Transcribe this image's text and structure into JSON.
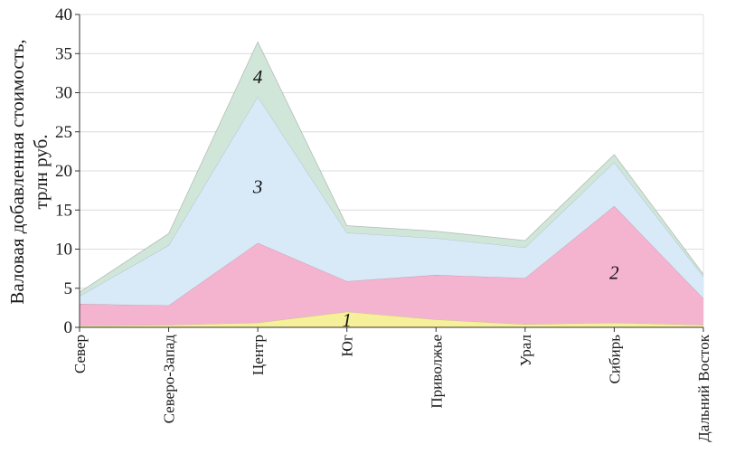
{
  "chart_data": {
    "type": "area",
    "stacked": true,
    "title": "",
    "ylabel_lines": [
      "Валовая добавленная стоимость,",
      "трлн руб."
    ],
    "ylim": [
      0,
      40
    ],
    "yticks": [
      0,
      5,
      10,
      15,
      20,
      25,
      30,
      35,
      40
    ],
    "grid": true,
    "categories": [
      "Север",
      "Северо-Запад",
      "Центр",
      "Юг",
      "Приволжье",
      "Урал",
      "Сибирь",
      "Дальний Восток"
    ],
    "series": [
      {
        "name": "1",
        "color": "#f7f09a",
        "values": [
          0.2,
          0.3,
          0.6,
          2.0,
          1.0,
          0.4,
          0.6,
          0.3
        ]
      },
      {
        "name": "2",
        "color": "#f4b4d0",
        "values": [
          2.8,
          2.5,
          10.2,
          3.9,
          5.7,
          5.9,
          14.9,
          3.4
        ]
      },
      {
        "name": "3",
        "color": "#d8e9f7",
        "values": [
          1.0,
          7.7,
          18.7,
          6.2,
          4.7,
          3.9,
          5.6,
          2.8
        ]
      },
      {
        "name": "4",
        "color": "#cfe6d9",
        "values": [
          0.5,
          1.5,
          7.0,
          0.9,
          0.9,
          0.9,
          1.0,
          0.3
        ]
      }
    ],
    "series_label_anchors": [
      {
        "category_index": 3,
        "value": 0.9
      },
      {
        "category_index": 6,
        "value": 7.0
      },
      {
        "category_index": 2,
        "value": 18.0
      },
      {
        "category_index": 2,
        "value": 32.0
      }
    ]
  }
}
